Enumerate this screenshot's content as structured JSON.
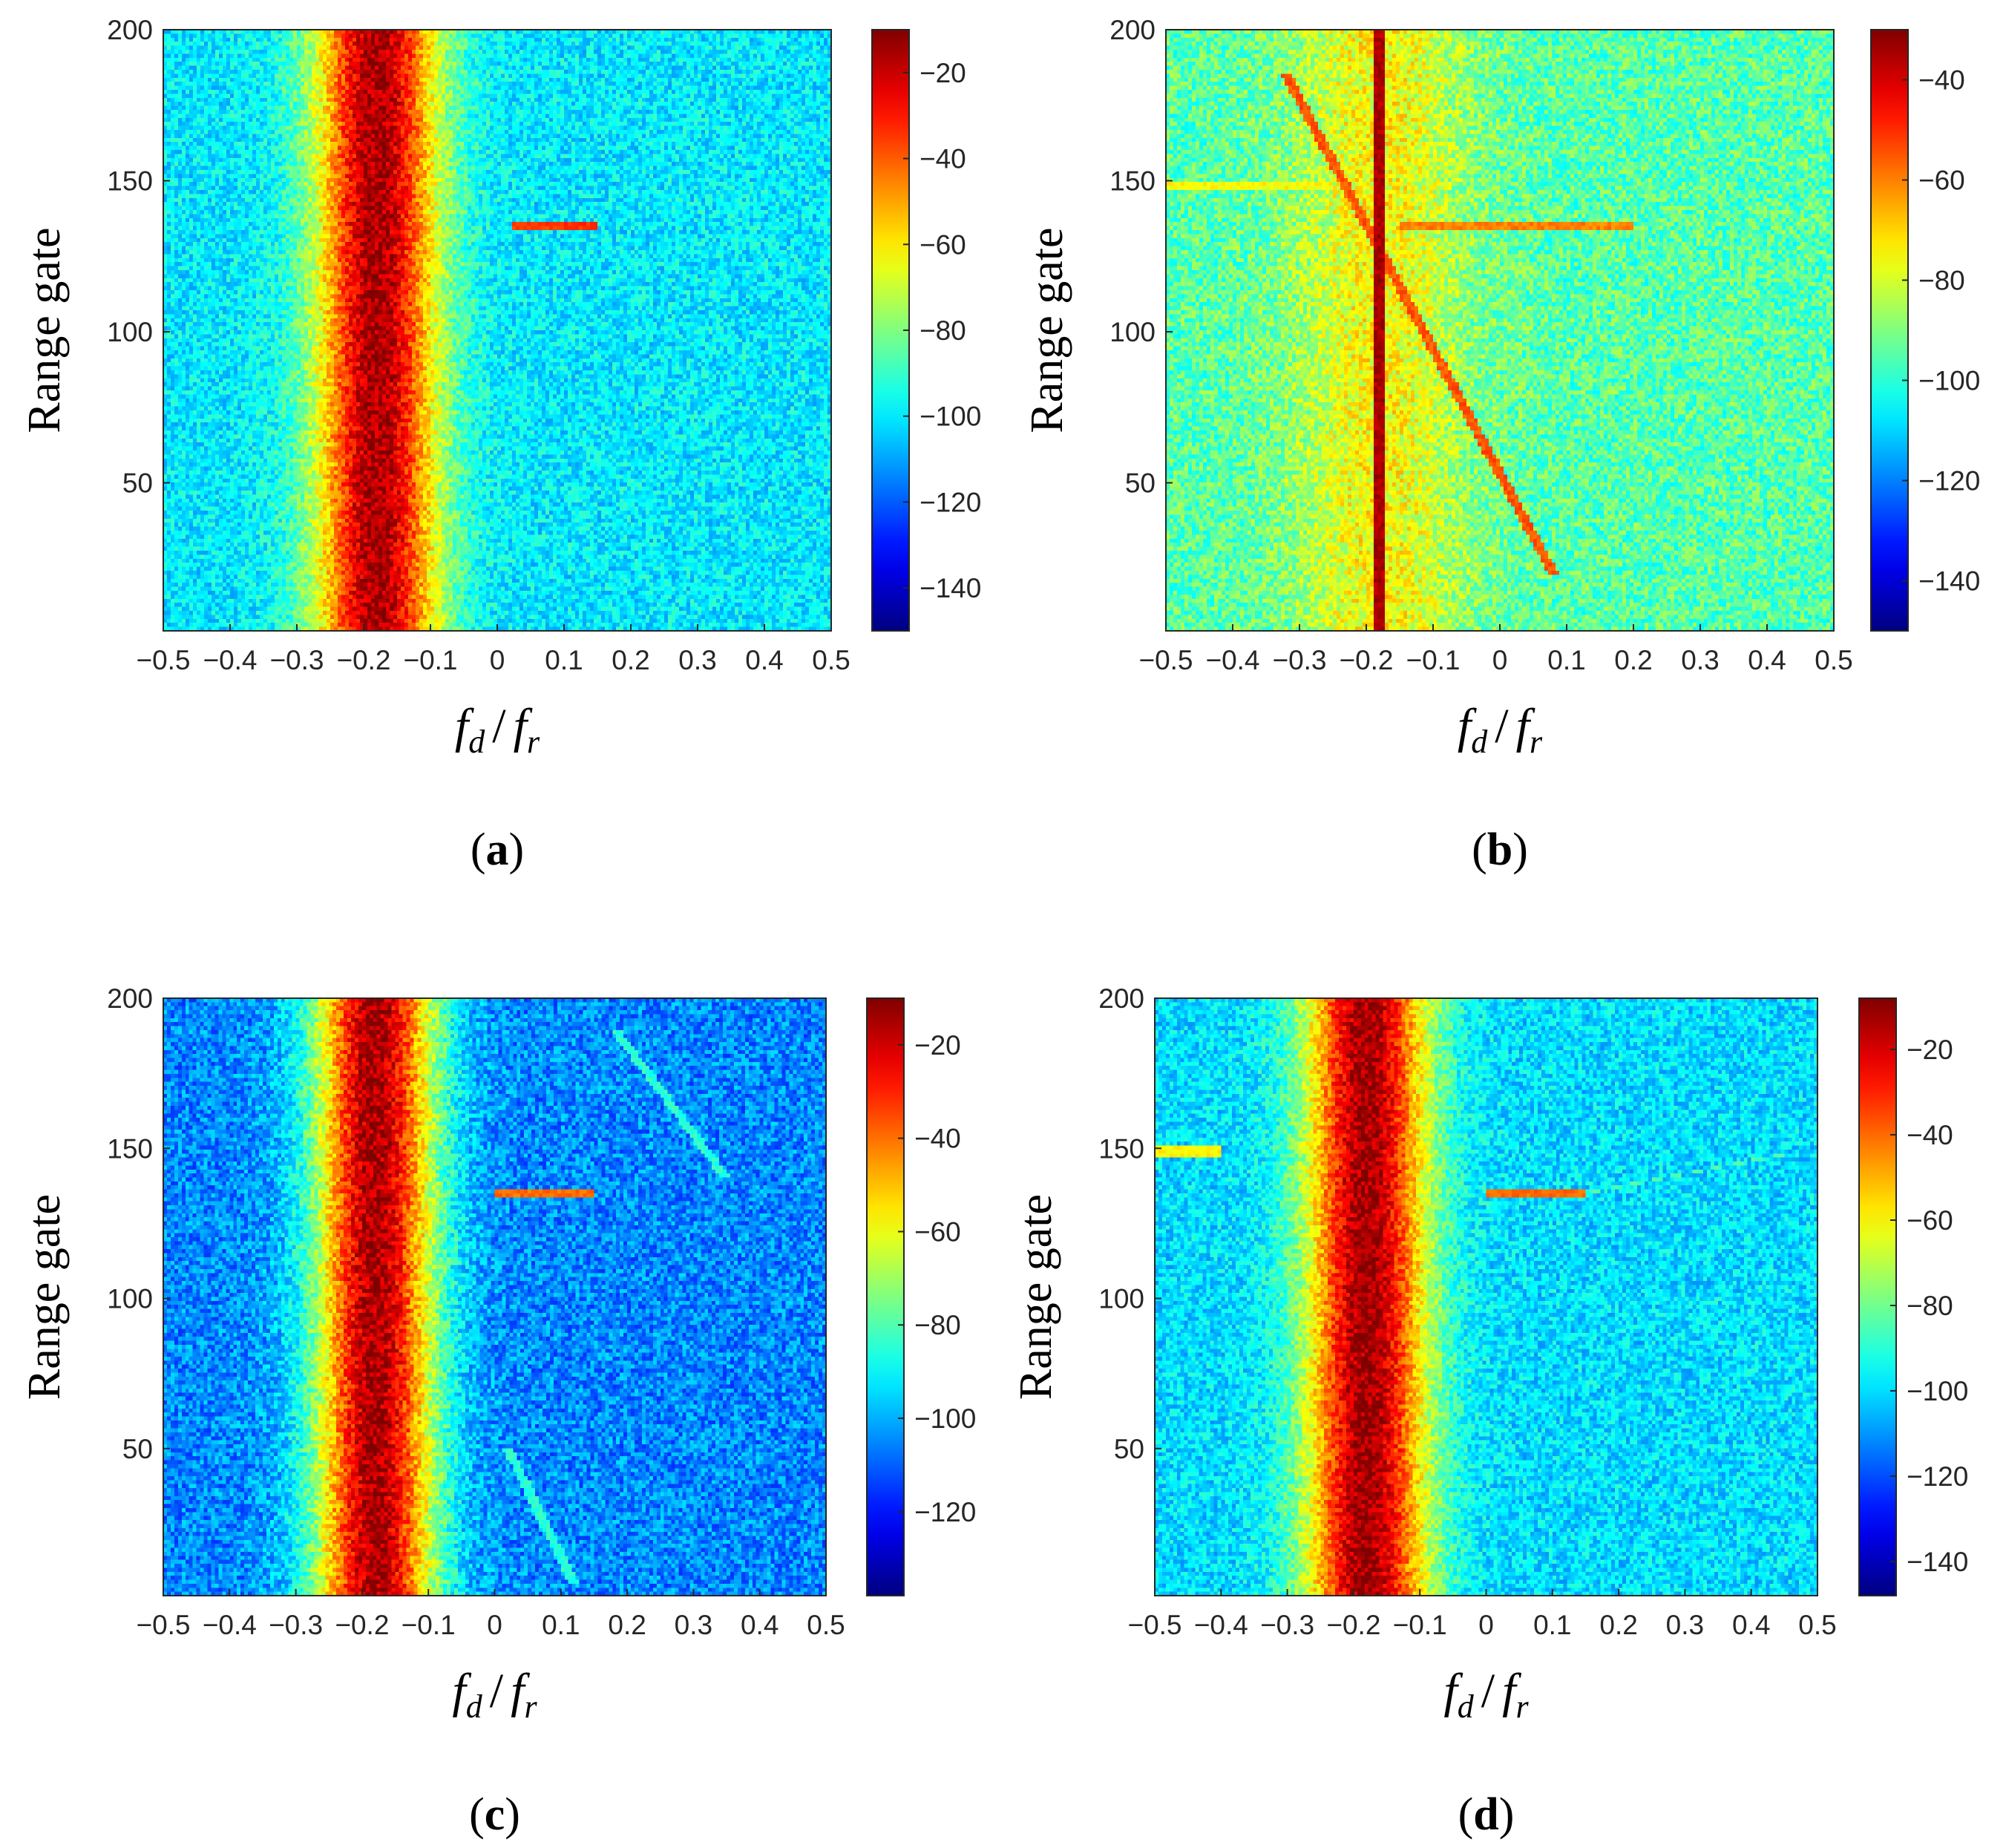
{
  "figure": {
    "ylabel": "Range gate",
    "xlabel": {
      "f": "f",
      "d": "d",
      "slash": "/",
      "r": "r"
    }
  },
  "chart_data": [
    {
      "id": "a",
      "caption": "(a)",
      "type": "heatmap",
      "xlabel": "f_d / f_r",
      "ylabel": "Range gate",
      "xlim": [
        -0.5,
        0.5
      ],
      "ylim": [
        1,
        200
      ],
      "xticks": [
        "−0.5",
        "−0.4",
        "−0.3",
        "−0.2",
        "−0.1",
        "0",
        "0.1",
        "0.2",
        "0.3",
        "0.4",
        "0.5"
      ],
      "yticks": [
        "50",
        "100",
        "150",
        "200"
      ],
      "colorbar": {
        "range": [
          -150,
          -10
        ],
        "ticks": [
          "−20",
          "−40",
          "−60",
          "−80",
          "−100",
          "−120",
          "−140"
        ]
      },
      "features": {
        "clutter_center": -0.18,
        "clutter_peak_db": -15,
        "clutter_width": 0.1,
        "noise_floor_db": -100,
        "targets": [
          {
            "kind": "horizontal",
            "gate": 135,
            "x_from": 0.02,
            "x_to": 0.15,
            "level_db": -35
          }
        ]
      }
    },
    {
      "id": "b",
      "caption": "(b)",
      "type": "heatmap",
      "xlabel": "f_d / f_r",
      "ylabel": "Range gate",
      "xlim": [
        -0.5,
        0.5
      ],
      "ylim": [
        1,
        200
      ],
      "xticks": [
        "−0.5",
        "−0.4",
        "−0.3",
        "−0.2",
        "−0.1",
        "0",
        "0.1",
        "0.2",
        "0.3",
        "0.4",
        "0.5"
      ],
      "yticks": [
        "50",
        "100",
        "150",
        "200"
      ],
      "colorbar": {
        "range": [
          -150,
          -30
        ],
        "ticks": [
          "−40",
          "−60",
          "−80",
          "−100",
          "−120",
          "−140"
        ]
      },
      "features": {
        "clutter_center": -0.18,
        "clutter_peak_db": -75,
        "clutter_width": 0.14,
        "noise_floor_db": -95,
        "notch_line": {
          "x": -0.18,
          "level_db": -35
        },
        "targets": [
          {
            "kind": "diagonal",
            "from": [
              -0.32,
              185
            ],
            "to": [
              0.08,
              20
            ],
            "level_db": -55
          },
          {
            "kind": "horizontal",
            "gate": 135,
            "x_from": -0.15,
            "x_to": 0.2,
            "level_db": -60
          },
          {
            "kind": "horizontal",
            "gate": 148,
            "x_from": -0.5,
            "x_to": -0.25,
            "level_db": -75
          }
        ]
      }
    },
    {
      "id": "c",
      "caption": "(c)",
      "type": "heatmap",
      "xlabel": "f_d / f_r",
      "ylabel": "Range gate",
      "xlim": [
        -0.5,
        0.5
      ],
      "ylim": [
        1,
        200
      ],
      "xticks": [
        "−0.5",
        "−0.4",
        "−0.3",
        "−0.2",
        "−0.1",
        "0",
        "0.1",
        "0.2",
        "0.3",
        "0.4",
        "0.5"
      ],
      "yticks": [
        "50",
        "100",
        "150",
        "200"
      ],
      "colorbar": {
        "range": [
          -138,
          -10
        ],
        "ticks": [
          "−20",
          "−40",
          "−60",
          "−80",
          "−100",
          "−120"
        ]
      },
      "features": {
        "clutter_center": -0.18,
        "clutter_peak_db": -15,
        "clutter_width": 0.1,
        "noise_floor_db": -105,
        "targets": [
          {
            "kind": "horizontal",
            "gate": 135,
            "x_from": 0.0,
            "x_to": 0.15,
            "level_db": -40
          },
          {
            "kind": "diagonal",
            "from": [
              0.18,
              190
            ],
            "to": [
              0.35,
              140
            ],
            "level_db": -85
          },
          {
            "kind": "diagonal",
            "from": [
              0.02,
              50
            ],
            "to": [
              0.12,
              5
            ],
            "level_db": -85
          }
        ]
      }
    },
    {
      "id": "d",
      "caption": "(d)",
      "type": "heatmap",
      "xlabel": "f_d / f_r",
      "ylabel": "Range gate",
      "xlim": [
        -0.5,
        0.5
      ],
      "ylim": [
        1,
        200
      ],
      "xticks": [
        "−0.5",
        "−0.4",
        "−0.3",
        "−0.2",
        "−0.1",
        "0",
        "0.1",
        "0.2",
        "0.3",
        "0.4",
        "0.5"
      ],
      "yticks": [
        "50",
        "100",
        "150",
        "200"
      ],
      "colorbar": {
        "range": [
          -148,
          -8
        ],
        "ticks": [
          "−20",
          "−40",
          "−60",
          "−80",
          "−100",
          "−120",
          "−140"
        ]
      },
      "features": {
        "clutter_center": -0.18,
        "clutter_peak_db": -12,
        "clutter_width": 0.1,
        "noise_floor_db": -100,
        "targets": [
          {
            "kind": "horizontal",
            "gate": 135,
            "x_from": 0.0,
            "x_to": 0.15,
            "level_db": -40
          },
          {
            "kind": "diagonal",
            "from": [
              0.15,
              135
            ],
            "to": [
              0.45,
              148
            ],
            "level_db": -85
          },
          {
            "kind": "horizontal",
            "gate": 149,
            "x_from": -0.5,
            "x_to": -0.4,
            "level_db": -60
          }
        ]
      }
    }
  ]
}
